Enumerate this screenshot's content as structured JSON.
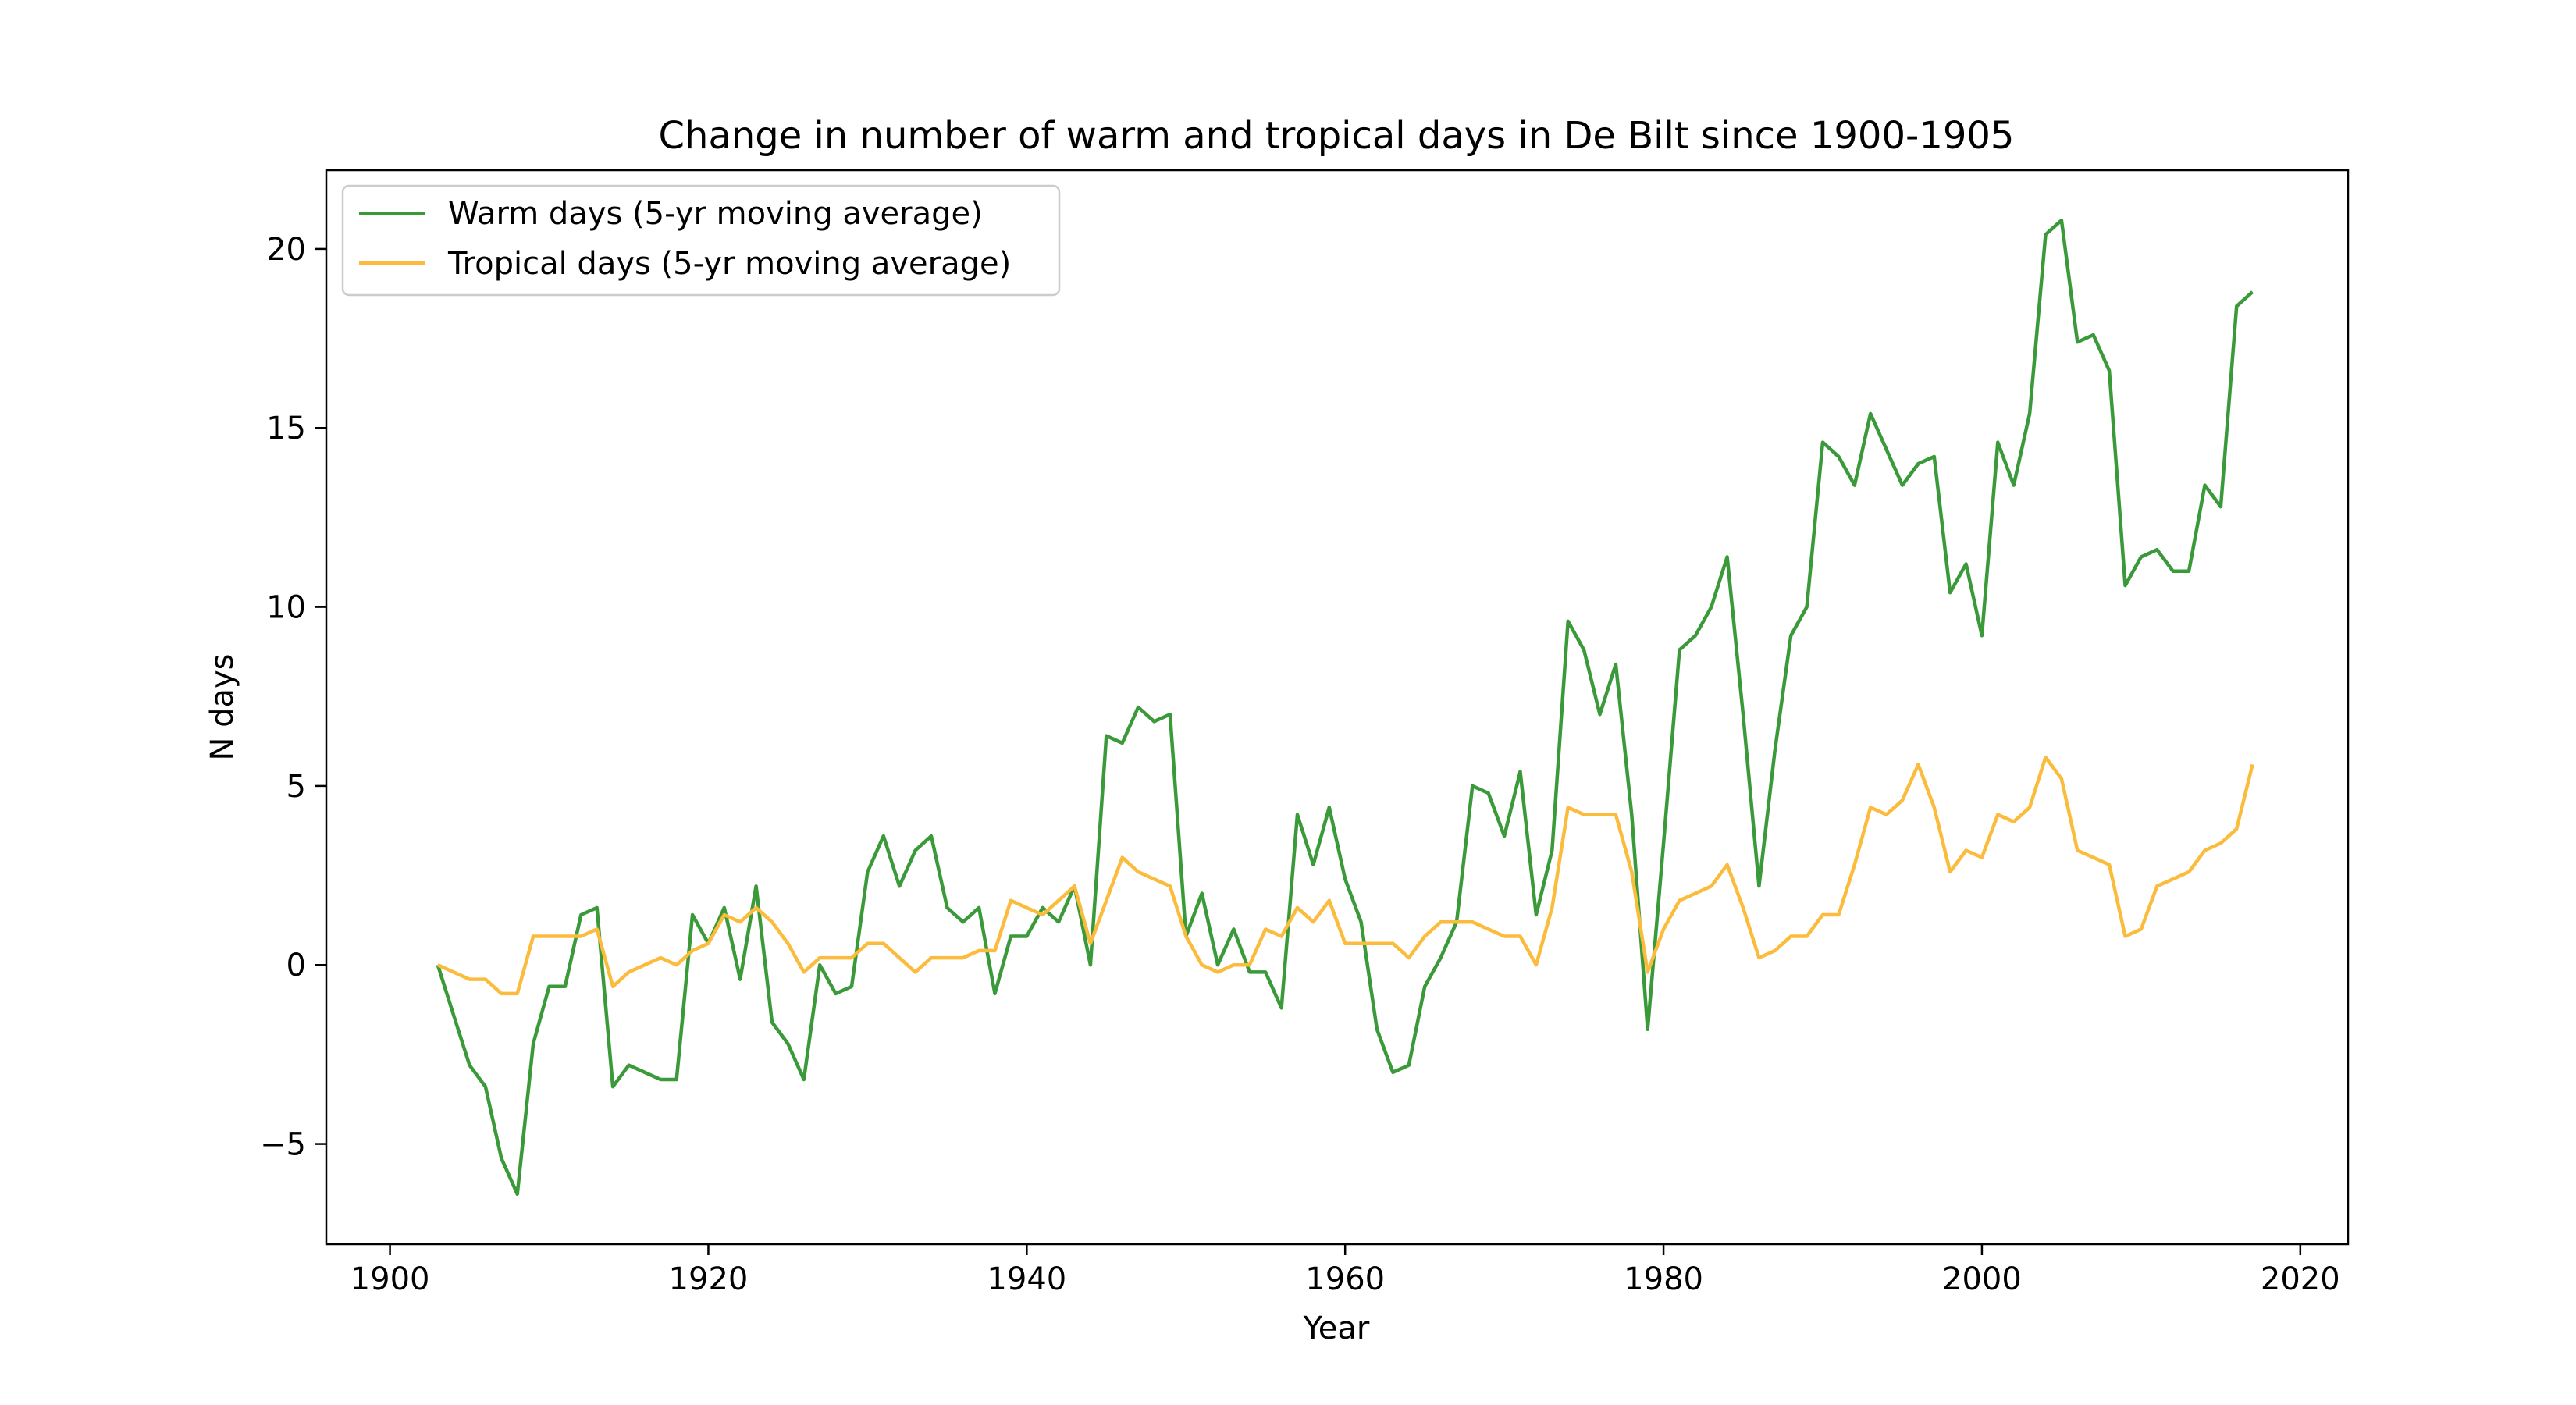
{
  "chart_data": {
    "type": "line",
    "title": "Change in number of warm and tropical days in De Bilt since 1900-1905",
    "xlabel": "Year",
    "ylabel": "N days",
    "xlim": [
      1896,
      2023
    ],
    "ylim": [
      -7.8,
      22.2
    ],
    "xticks": [
      1900,
      1920,
      1940,
      1960,
      1980,
      2000,
      2020
    ],
    "yticks": [
      -5,
      0,
      5,
      10,
      15,
      20
    ],
    "ytick_labels": [
      "−5",
      "0",
      "5",
      "10",
      "15",
      "20"
    ],
    "grid": false,
    "legend_position": "top-left",
    "x": [
      1903,
      1904,
      1905,
      1906,
      1907,
      1908,
      1909,
      1910,
      1911,
      1912,
      1913,
      1914,
      1915,
      1916,
      1917,
      1918,
      1919,
      1920,
      1921,
      1922,
      1923,
      1924,
      1925,
      1926,
      1927,
      1928,
      1929,
      1930,
      1931,
      1932,
      1933,
      1934,
      1935,
      1936,
      1937,
      1938,
      1939,
      1940,
      1941,
      1942,
      1943,
      1944,
      1945,
      1946,
      1947,
      1948,
      1949,
      1950,
      1951,
      1952,
      1953,
      1954,
      1955,
      1956,
      1957,
      1958,
      1959,
      1960,
      1961,
      1962,
      1963,
      1964,
      1965,
      1966,
      1967,
      1968,
      1969,
      1970,
      1971,
      1972,
      1973,
      1974,
      1975,
      1976,
      1977,
      1978,
      1979,
      1980,
      1981,
      1982,
      1983,
      1984,
      1985,
      1986,
      1987,
      1988,
      1989,
      1990,
      1991,
      1992,
      1993,
      1994,
      1995,
      1996,
      1997,
      1998,
      1999,
      2000,
      2001,
      2002,
      2003,
      2004,
      2005,
      2006,
      2007,
      2008,
      2009,
      2010,
      2011,
      2012,
      2013,
      2014,
      2015,
      2016,
      2017
    ],
    "series": [
      {
        "name": "Warm days (5-yr moving average)",
        "color": "#3a9a3a",
        "values": [
          0,
          -1.4,
          -2.8,
          -3.4,
          -5.4,
          -6.4,
          -2.2,
          -0.6,
          -0.6,
          1.4,
          1.6,
          -3.4,
          -2.8,
          -3.0,
          -3.2,
          -3.2,
          1.4,
          0.6,
          1.6,
          -0.4,
          2.2,
          -1.6,
          -2.2,
          -3.2,
          0.0,
          -0.8,
          -0.6,
          2.6,
          3.6,
          2.2,
          3.2,
          3.6,
          1.6,
          1.2,
          1.6,
          -0.8,
          0.8,
          0.8,
          1.6,
          1.2,
          2.2,
          0.0,
          6.4,
          6.2,
          7.2,
          6.8,
          7.0,
          0.8,
          2.0,
          0.0,
          1.0,
          -0.2,
          -0.2,
          -1.2,
          4.2,
          2.8,
          4.4,
          2.4,
          1.2,
          -1.8,
          -3.0,
          -2.8,
          -0.6,
          0.2,
          1.2,
          5.0,
          4.8,
          3.6,
          5.4,
          1.4,
          3.2,
          9.6,
          8.8,
          7.0,
          8.4,
          4.2,
          -1.8,
          3.4,
          8.8,
          9.2,
          10.0,
          11.4,
          7.0,
          2.2,
          6.0,
          9.2,
          10.0,
          14.6,
          14.2,
          13.4,
          15.4,
          14.4,
          13.4,
          14.0,
          14.2,
          10.4,
          11.2,
          9.2,
          14.6,
          13.4,
          15.4,
          20.4,
          20.8,
          17.4,
          17.6,
          16.6,
          10.6,
          11.4,
          11.6,
          11.0,
          11.0,
          13.4,
          12.8,
          18.4,
          18.8
        ]
      },
      {
        "name": "Tropical days (5-yr moving average)",
        "color": "#fbbc3e",
        "values": [
          0,
          -0.2,
          -0.4,
          -0.4,
          -0.8,
          -0.8,
          0.8,
          0.8,
          0.8,
          0.8,
          1.0,
          -0.6,
          -0.2,
          0.0,
          0.2,
          0.0,
          0.4,
          0.6,
          1.4,
          1.2,
          1.6,
          1.2,
          0.6,
          -0.2,
          0.2,
          0.2,
          0.2,
          0.6,
          0.6,
          0.2,
          -0.2,
          0.2,
          0.2,
          0.2,
          0.4,
          0.4,
          1.8,
          1.6,
          1.4,
          1.8,
          2.2,
          0.6,
          1.8,
          3.0,
          2.6,
          2.4,
          2.2,
          0.8,
          0.0,
          -0.2,
          0.0,
          0.0,
          1.0,
          0.8,
          1.6,
          1.2,
          1.8,
          0.6,
          0.6,
          0.6,
          0.6,
          0.2,
          0.8,
          1.2,
          1.2,
          1.2,
          1.0,
          0.8,
          0.8,
          0.0,
          1.6,
          4.4,
          4.2,
          4.2,
          4.2,
          2.6,
          -0.2,
          1.0,
          1.8,
          2.0,
          2.2,
          2.8,
          1.6,
          0.2,
          0.4,
          0.8,
          0.8,
          1.4,
          1.4,
          2.8,
          4.4,
          4.2,
          4.6,
          5.6,
          4.4,
          2.6,
          3.2,
          3.0,
          4.2,
          4.0,
          4.4,
          5.8,
          5.2,
          3.2,
          3.0,
          2.8,
          0.8,
          1.0,
          2.2,
          2.4,
          2.6,
          3.2,
          3.4,
          3.8,
          5.6
        ]
      }
    ]
  }
}
